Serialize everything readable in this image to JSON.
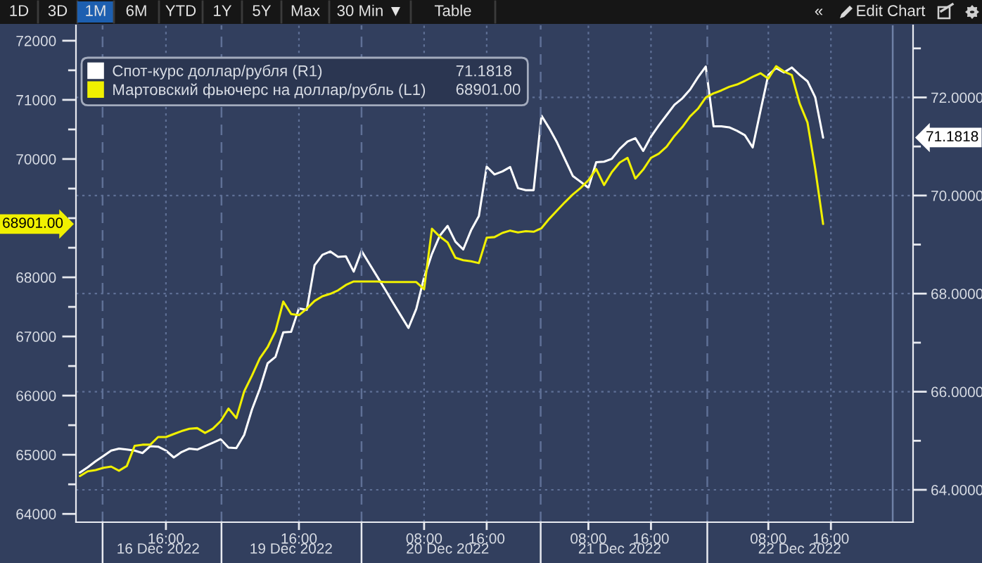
{
  "chart_data": {
    "type": "line",
    "categories": [
      null,
      null,
      null,
      null,
      null,
      null,
      null,
      null,
      null,
      null,
      "\n16 Dec 2022",
      "16:00",
      null,
      null,
      null,
      null,
      null,
      null,
      null,
      null,
      null,
      null,
      null,
      null,
      null,
      null,
      null,
      "\n19 Dec 2022",
      "16:00",
      null,
      null,
      null,
      null,
      null,
      null,
      null,
      null,
      null,
      null,
      null,
      null,
      null,
      null,
      null,
      "08:00",
      null,
      null,
      "\n20 Dec 2022",
      null,
      null,
      null,
      null,
      "16:00",
      null,
      null,
      null,
      null,
      null,
      null,
      null,
      null,
      null,
      null,
      null,
      null,
      "08:00",
      null,
      null,
      null,
      "\n21 Dec 2022",
      null,
      null,
      null,
      "16:00",
      null,
      null,
      null,
      null,
      null,
      null,
      null,
      null,
      null,
      null,
      null,
      null,
      null,
      null,
      "08:00",
      null,
      null,
      null,
      "\n22 Dec 2022",
      null,
      null,
      null,
      "16:00",
      null,
      null,
      null,
      null,
      null,
      null,
      null,
      null,
      null,
      null
    ],
    "series": [
      {
        "name": "Спот-курс доллар/рубля (R1)",
        "color": "#ffffff",
        "axis": "y2",
        "values": [
          64.35,
          64.46,
          64.58,
          64.69,
          64.8,
          64.84,
          64.82,
          64.8,
          64.75,
          64.89,
          64.88,
          64.8,
          64.66,
          64.77,
          64.84,
          64.82,
          64.89,
          64.96,
          65.03,
          64.86,
          64.85,
          65.12,
          65.64,
          66.06,
          66.58,
          66.71,
          67.21,
          67.22,
          67.7,
          67.67,
          68.58,
          68.79,
          68.86,
          68.75,
          68.76,
          68.45,
          68.87,
          68.61,
          68.35,
          68.09,
          67.82,
          67.56,
          67.3,
          67.69,
          68.33,
          68.81,
          69.18,
          69.38,
          69.06,
          68.9,
          69.29,
          69.58,
          70.59,
          70.43,
          70.49,
          70.58,
          70.15,
          70.11,
          70.11,
          71.63,
          71.37,
          71.08,
          70.74,
          70.4,
          70.28,
          70.16,
          70.68,
          70.69,
          70.75,
          70.95,
          71.1,
          71.17,
          70.91,
          71.2,
          71.43,
          71.64,
          71.85,
          71.98,
          72.16,
          72.41,
          72.63,
          71.41,
          71.41,
          71.39,
          71.32,
          71.23,
          70.98,
          71.73,
          72.46,
          72.6,
          72.51,
          72.61,
          72.46,
          72.33,
          72.0,
          71.1818,
          null,
          null,
          null,
          null,
          null,
          null,
          null,
          null,
          null,
          null,
          null
        ]
      },
      {
        "name": "Мартовский фьючерс на доллар/рубль (L1)",
        "color": "#f0f000",
        "axis": "y",
        "values": [
          64640,
          64720,
          64740,
          64780,
          64800,
          64730,
          64810,
          65150,
          65170,
          65170,
          65300,
          65300,
          65350,
          65400,
          65440,
          65450,
          65370,
          65440,
          65570,
          65780,
          65620,
          66070,
          66340,
          66630,
          66820,
          67090,
          67590,
          67380,
          67360,
          67470,
          67600,
          67680,
          67720,
          67780,
          67870,
          67930,
          67930,
          67930,
          67930,
          67920,
          67920,
          67920,
          67920,
          67920,
          67800,
          68820,
          68690,
          68590,
          68330,
          68290,
          68270,
          68240,
          68670,
          68680,
          68750,
          68790,
          68760,
          68780,
          68770,
          68830,
          68990,
          69130,
          69270,
          69400,
          69510,
          69640,
          69830,
          69560,
          69780,
          69940,
          70020,
          69670,
          69820,
          70020,
          70090,
          70210,
          70390,
          70540,
          70720,
          70850,
          71040,
          71110,
          71160,
          71220,
          71260,
          71320,
          71390,
          71450,
          71360,
          71570,
          71480,
          71420,
          70940,
          70620,
          69830,
          68901,
          null,
          null,
          null,
          null,
          null,
          null,
          null,
          null,
          null,
          null,
          null
        ]
      }
    ],
    "ylim": [
      63860,
      72260
    ],
    "yticks": [
      64000,
      {
        "value": 64500,
        "label": null
      },
      65000,
      {
        "value": 65500,
        "label": null
      },
      66000,
      {
        "value": 66500,
        "label": null
      },
      67000,
      {
        "value": 67500,
        "label": null
      },
      68000,
      {
        "value": 68500,
        "label": null
      },
      {
        "value": 69000,
        "label": null
      },
      {
        "value": 69500,
        "label": null
      },
      70000,
      {
        "value": 70500,
        "label": null
      },
      71000,
      {
        "value": 71500,
        "label": null
      },
      72000
    ],
    "y2lim": [
      63.34,
      73.47
    ],
    "y2ticks": [
      {
        "value": 64,
        "label": "64.0000"
      },
      {
        "value": 65,
        "label": null
      },
      {
        "value": 66,
        "label": "66.0000"
      },
      {
        "value": 67,
        "label": null
      },
      {
        "value": 68,
        "label": "68.0000"
      },
      {
        "value": 69,
        "label": null
      },
      {
        "value": 70,
        "label": "70.0000"
      },
      {
        "value": 71,
        "label": null
      },
      {
        "value": 72,
        "label": "72.0000"
      },
      {
        "value": 73,
        "label": null
      }
    ],
    "grid": true,
    "legend": "top left",
    "annotations": [
      "1D",
      "3D",
      "1M",
      "6M",
      "YTD",
      "1Y",
      "5Y",
      "Max",
      "30 Min ▼",
      "Table",
      "«",
      "Edit Chart",
      "71.1818",
      "68901.00"
    ]
  }
}
